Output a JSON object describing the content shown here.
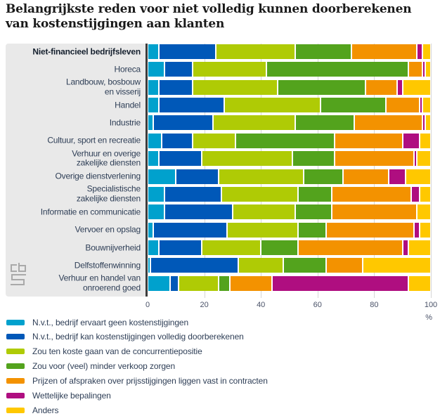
{
  "title": {
    "line1": "Belangrijkste reden voor niet volledig kunnen doorberekenen",
    "line2": "van kostenstijgingen aan klanten"
  },
  "colors": {
    "cyan": "#00a1cd",
    "dark_blue": "#0058b8",
    "lime": "#afcb05",
    "green": "#53a31d",
    "orange": "#f39200",
    "magenta": "#af0e80",
    "yellow": "#ffc800",
    "panel_gray": "#e9e9e9",
    "axis": "#3d3d3d"
  },
  "logo": {
    "name": "cbs-logo"
  },
  "axis": {
    "unit": "%"
  },
  "chart_data": {
    "type": "bar",
    "stacked": true,
    "orientation": "horizontal",
    "title": "Belangrijkste reden voor niet volledig kunnen doorberekenen van kostenstijgingen aan klanten",
    "xlabel": "%",
    "xlim": [
      0,
      100
    ],
    "xticks": [
      0,
      20,
      40,
      60,
      80,
      100
    ],
    "grid": true,
    "legend_position": "bottom",
    "categories": [
      "Niet-financieel bedrijfsleven",
      "Horeca",
      "Landbouw, bosbouw\nen visserij",
      "Handel",
      "Industrie",
      "Cultuur, sport en recreatie",
      "Verhuur en overige\nzakelijke diensten",
      "Overige dienstverlening",
      "Specialistische\nzakelijke diensten",
      "Informatie en communicatie",
      "Vervoer en opslag",
      "Bouwnijverheid",
      "Delfstoffenwinning",
      "Verhuur en handel van\nonroerend goed"
    ],
    "series": [
      {
        "name": "N.v.t., bedrijf ervaart geen kostenstijgingen",
        "color": "#00a1cd",
        "values": [
          4,
          6,
          4,
          4,
          2,
          5,
          4,
          10,
          6,
          6,
          2,
          4,
          1,
          8
        ]
      },
      {
        "name": "N.v.t., bedrijf kan kostenstijgingen volledig doorberekenen",
        "color": "#0058b8",
        "values": [
          20,
          10,
          12,
          23,
          21,
          11,
          15,
          15,
          20,
          24,
          26,
          15,
          31,
          3
        ]
      },
      {
        "name": "Zou ten koste gaan van de concurrentiepositie",
        "color": "#afcb05",
        "values": [
          28,
          26,
          30,
          34,
          29,
          15,
          32,
          30,
          27,
          22,
          25,
          21,
          16,
          14
        ]
      },
      {
        "name": "Zou voor (veel) minder verkoop zorgen",
        "color": "#53a31d",
        "values": [
          20,
          50,
          31,
          23,
          21,
          35,
          15,
          14,
          12,
          13,
          10,
          13,
          15,
          4
        ]
      },
      {
        "name": "Prijzen of afspraken over prijsstijgingen liggen vast in contracten",
        "color": "#f39200",
        "values": [
          23,
          5,
          11,
          12,
          24,
          24,
          28,
          16,
          28,
          30,
          31,
          37,
          13,
          15
        ]
      },
      {
        "name": "Wettelijke bepalingen",
        "color": "#af0e80",
        "values": [
          2,
          1,
          2,
          1,
          1,
          6,
          1,
          6,
          3,
          0,
          2,
          2,
          0,
          48
        ]
      },
      {
        "name": "Anders",
        "color": "#ffc800",
        "values": [
          3,
          2,
          10,
          3,
          2,
          4,
          5,
          9,
          4,
          5,
          4,
          8,
          24,
          8
        ]
      }
    ]
  }
}
